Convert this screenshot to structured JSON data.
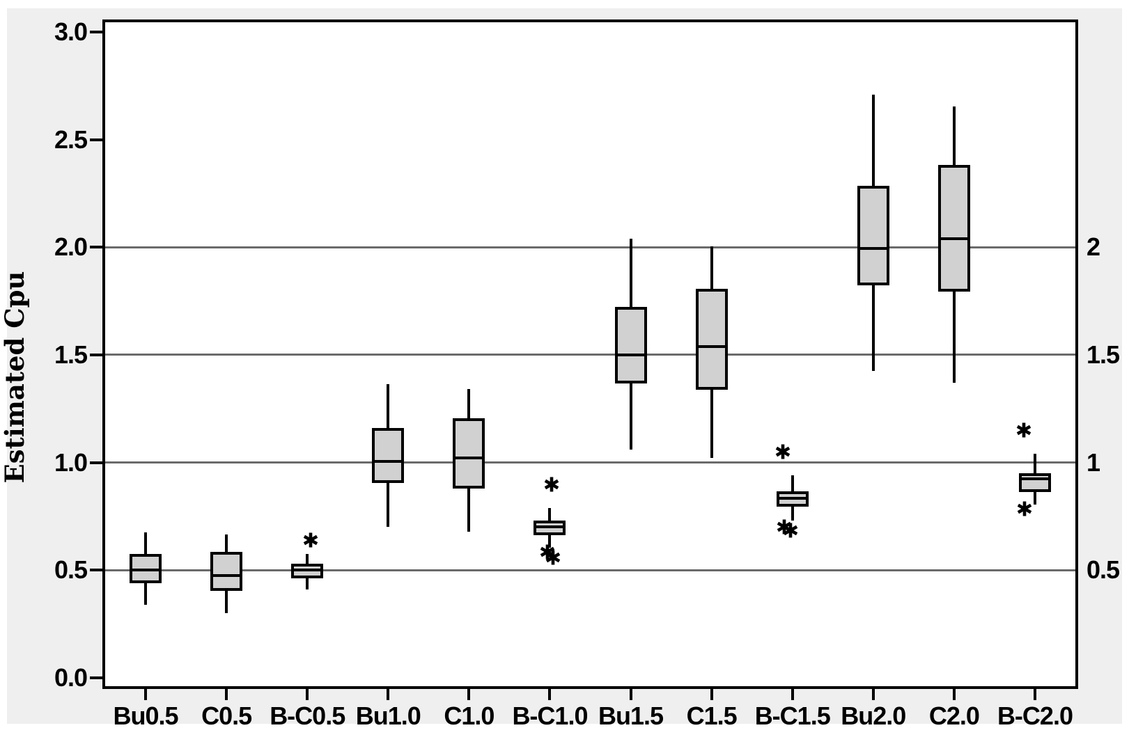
{
  "colors": {
    "page_bg": "#ffffff",
    "panel_bg": "#efefef",
    "plot_bg": "#ffffff",
    "grid": "#6a6a6a",
    "line": "#000000",
    "box_fill": "#d1d1d1"
  },
  "chart_data": {
    "type": "boxplot",
    "title": "",
    "xlabel": "",
    "ylabel": "Estimated Cpu",
    "ylim": [
      -0.039,
      3.045
    ],
    "grid": "horizontal",
    "gridline_values": [
      0.5,
      1.0,
      1.5,
      2.0
    ],
    "y_ticks": [
      {
        "value": 0.0,
        "label": "0.0"
      },
      {
        "value": 0.5,
        "label": "0.5"
      },
      {
        "value": 1.0,
        "label": "1.0"
      },
      {
        "value": 1.5,
        "label": "1.5"
      },
      {
        "value": 2.0,
        "label": "2.0"
      },
      {
        "value": 2.5,
        "label": "2.5"
      },
      {
        "value": 3.0,
        "label": "3.0"
      }
    ],
    "right_ticks": [
      {
        "value": 0.5,
        "label": "0.5"
      },
      {
        "value": 1.0,
        "label": "1"
      },
      {
        "value": 1.5,
        "label": "1.5"
      },
      {
        "value": 2.0,
        "label": "2"
      }
    ],
    "categories": [
      "Bu0.5",
      "C0.5",
      "B-C0.5",
      "Bu1.0",
      "C1.0",
      "B-C1.0",
      "Bu1.5",
      "C1.5",
      "B-C1.5",
      "Bu2.0",
      "C2.0",
      "B-C2.0"
    ],
    "boxes": [
      {
        "category": "Bu0.5",
        "whisker_low": 0.34,
        "q1": 0.445,
        "median": 0.5,
        "q3": 0.57,
        "whisker_high": 0.675,
        "outliers": []
      },
      {
        "category": "C0.5",
        "whisker_low": 0.3,
        "q1": 0.41,
        "median": 0.475,
        "q3": 0.58,
        "whisker_high": 0.665,
        "outliers": []
      },
      {
        "category": "B-C0.5",
        "whisker_low": 0.41,
        "q1": 0.47,
        "median": 0.5,
        "q3": 0.525,
        "whisker_high": 0.575,
        "outliers": [
          {
            "value": 0.64,
            "dx": 5
          }
        ]
      },
      {
        "category": "Bu1.0",
        "whisker_low": 0.7,
        "q1": 0.91,
        "median": 1.005,
        "q3": 1.155,
        "whisker_high": 1.365,
        "outliers": []
      },
      {
        "category": "C1.0",
        "whisker_low": 0.68,
        "q1": 0.885,
        "median": 1.02,
        "q3": 1.2,
        "whisker_high": 1.34,
        "outliers": []
      },
      {
        "category": "B-C1.0",
        "whisker_low": 0.605,
        "q1": 0.67,
        "median": 0.7,
        "q3": 0.725,
        "whisker_high": 0.79,
        "outliers": [
          {
            "value": 0.9,
            "dx": 3
          },
          {
            "value": 0.585,
            "dx": -3
          },
          {
            "value": 0.56,
            "dx": 5
          }
        ]
      },
      {
        "category": "Bu1.5",
        "whisker_low": 1.06,
        "q1": 1.375,
        "median": 1.5,
        "q3": 1.715,
        "whisker_high": 2.04,
        "outliers": []
      },
      {
        "category": "C1.5",
        "whisker_low": 1.02,
        "q1": 1.345,
        "median": 1.54,
        "q3": 1.8,
        "whisker_high": 2.005,
        "outliers": []
      },
      {
        "category": "B-C1.5",
        "whisker_low": 0.73,
        "q1": 0.8,
        "median": 0.835,
        "q3": 0.86,
        "whisker_high": 0.94,
        "outliers": [
          {
            "value": 1.05,
            "dx": -14
          },
          {
            "value": 0.7,
            "dx": -12
          },
          {
            "value": 0.685,
            "dx": -3
          }
        ]
      },
      {
        "category": "Bu2.0",
        "whisker_low": 1.425,
        "q1": 1.83,
        "median": 1.995,
        "q3": 2.28,
        "whisker_high": 2.71,
        "outliers": []
      },
      {
        "category": "C2.0",
        "whisker_low": 1.37,
        "q1": 1.8,
        "median": 2.04,
        "q3": 2.375,
        "whisker_high": 2.655,
        "outliers": []
      },
      {
        "category": "B-C2.0",
        "whisker_low": 0.805,
        "q1": 0.87,
        "median": 0.925,
        "q3": 0.945,
        "whisker_high": 1.04,
        "outliers": [
          {
            "value": 1.15,
            "dx": -16
          },
          {
            "value": 0.785,
            "dx": -15
          }
        ]
      }
    ]
  }
}
